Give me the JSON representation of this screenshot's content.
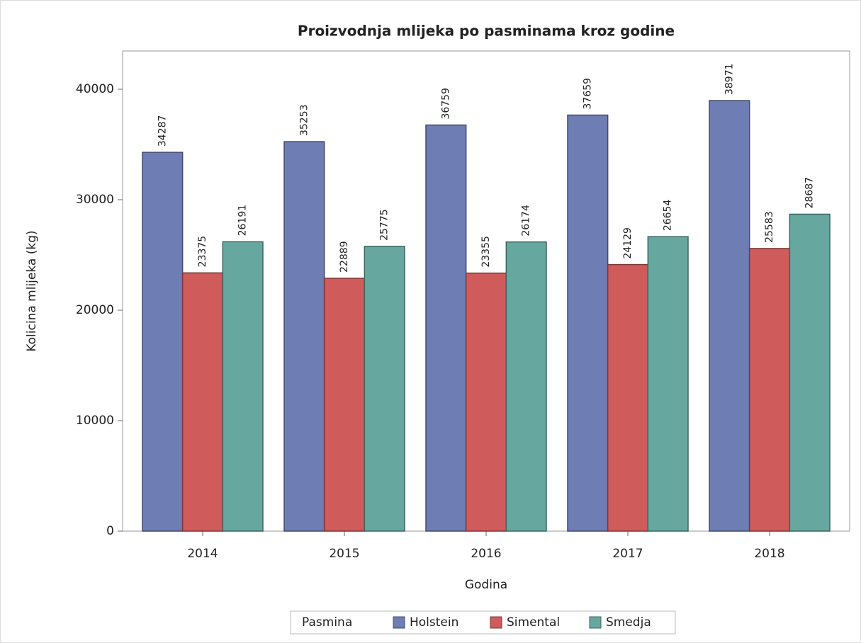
{
  "chart_data": {
    "type": "bar",
    "title": "Proizvodnja mlijeka po pasminama kroz godine",
    "x_label": "Godina",
    "y_label": "Kolicina mlijeka (kg)",
    "legend_title": "Pasmina",
    "legend": "bottom",
    "categories": [
      "2014",
      "2015",
      "2016",
      "2017",
      "2018"
    ],
    "series": [
      {
        "name": "Holstein",
        "color": "#6f7db5",
        "values": [
          34287,
          35253,
          36759,
          37659,
          38971
        ]
      },
      {
        "name": "Simental",
        "color": "#d05b5b",
        "values": [
          23375,
          22889,
          23355,
          24129,
          25583
        ]
      },
      {
        "name": "Smedja",
        "color": "#66a8a0",
        "values": [
          26191,
          25775,
          26174,
          26654,
          28687
        ]
      }
    ],
    "ylim": [
      0,
      43460
    ],
    "yticks": [
      0,
      10000,
      20000,
      30000,
      40000
    ]
  }
}
